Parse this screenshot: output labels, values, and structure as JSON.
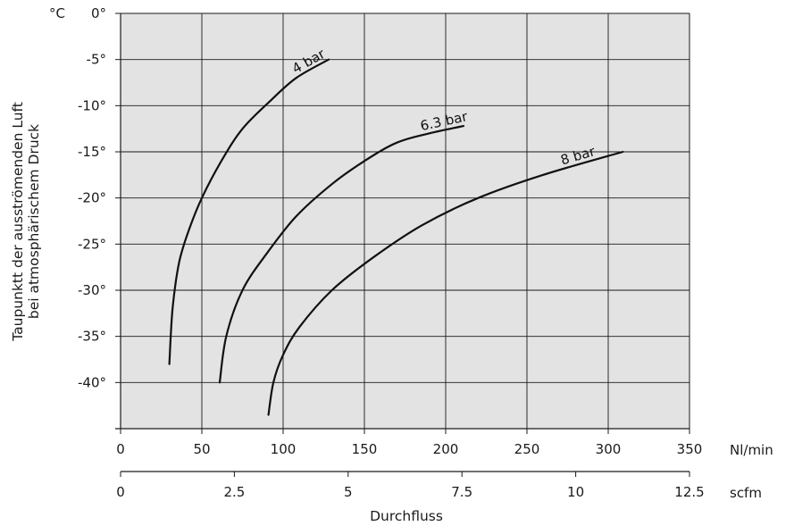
{
  "chart_data": {
    "type": "line",
    "ylabel_lines": [
      "Taupunktt der ausströmenden Luft",
      "bei atmosphärischem Druck"
    ],
    "y_unit": "°C",
    "xlabel": "Durchfluss",
    "x_unit_primary": "Nl/min",
    "x_unit_secondary": "scfm",
    "xlim": [
      0,
      350
    ],
    "ylim": [
      -45,
      0
    ],
    "secondary_xlim": [
      0,
      12.5
    ],
    "grid": true,
    "y_ticks": [
      "0°",
      "-5°",
      "-10°",
      "-15°",
      "-20°",
      "-25°",
      "-30°",
      "-35°",
      "-40°"
    ],
    "y_tick_values": [
      0,
      -5,
      -10,
      -15,
      -20,
      -25,
      -30,
      -35,
      -40
    ],
    "x_ticks": [
      "0",
      "50",
      "100",
      "150",
      "200",
      "250",
      "300",
      "350"
    ],
    "x_tick_values": [
      0,
      50,
      100,
      150,
      200,
      250,
      300,
      350
    ],
    "secondary_ticks": [
      "0",
      "2.5",
      "5",
      "7.5",
      "10",
      "12.5"
    ],
    "secondary_tick_values": [
      0,
      2.5,
      5,
      7.5,
      10,
      12.5
    ],
    "series": [
      {
        "name": "4 bar",
        "x": [
          30,
          32,
          36,
          42,
          50,
          62,
          75,
          92,
          108,
          128
        ],
        "y": [
          -38,
          -32,
          -27,
          -23.5,
          -20,
          -16,
          -12.5,
          -9.5,
          -7,
          -5
        ]
      },
      {
        "name": "6.3 bar",
        "x": [
          61,
          65,
          75,
          90,
          108,
          130,
          150,
          170,
          190,
          211
        ],
        "y": [
          -40,
          -35,
          -30,
          -26,
          -22,
          -18.5,
          -16,
          -14,
          -13,
          -12.2
        ]
      },
      {
        "name": "8 bar",
        "x": [
          91,
          94,
          100,
          110,
          130,
          155,
          185,
          220,
          260,
          309
        ],
        "y": [
          -43.5,
          -40,
          -37,
          -34,
          -30,
          -26.5,
          -23,
          -20,
          -17.5,
          -15
        ]
      }
    ]
  }
}
